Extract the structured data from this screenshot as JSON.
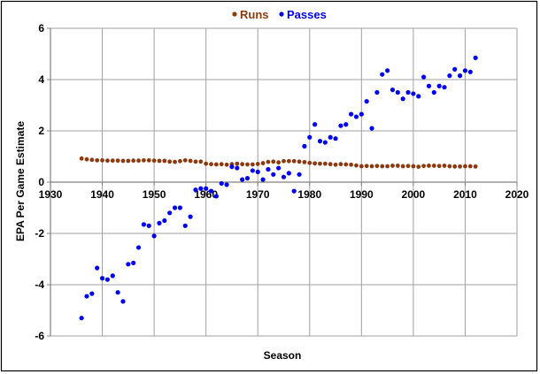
{
  "chart_data": {
    "type": "scatter",
    "xlabel": "Season",
    "ylabel": "EPA Per Game Estimate",
    "xlim": [
      1930,
      2020
    ],
    "ylim": [
      -6,
      6
    ],
    "x_ticks": [
      1930,
      1940,
      1950,
      1960,
      1970,
      1980,
      1990,
      2000,
      2010,
      2020
    ],
    "y_ticks": [
      -6,
      -4,
      -2,
      0,
      2,
      4,
      6
    ],
    "grid": true,
    "legend_position": "top-center",
    "series": [
      {
        "name": "Runs",
        "color": "#8B3A0F",
        "x": [
          1936,
          1937,
          1938,
          1939,
          1940,
          1941,
          1942,
          1943,
          1944,
          1945,
          1946,
          1947,
          1948,
          1949,
          1950,
          1951,
          1952,
          1953,
          1954,
          1955,
          1956,
          1957,
          1958,
          1959,
          1960,
          1961,
          1962,
          1963,
          1964,
          1965,
          1966,
          1967,
          1968,
          1969,
          1970,
          1971,
          1972,
          1973,
          1974,
          1975,
          1976,
          1977,
          1978,
          1979,
          1980,
          1981,
          1982,
          1983,
          1984,
          1985,
          1986,
          1987,
          1988,
          1989,
          1990,
          1991,
          1992,
          1993,
          1994,
          1995,
          1996,
          1997,
          1998,
          1999,
          2000,
          2001,
          2002,
          2003,
          2004,
          2005,
          2006,
          2007,
          2008,
          2009,
          2010,
          2011,
          2012
        ],
        "y": [
          0.92,
          0.89,
          0.87,
          0.85,
          0.85,
          0.84,
          0.84,
          0.84,
          0.83,
          0.83,
          0.84,
          0.84,
          0.85,
          0.85,
          0.84,
          0.83,
          0.83,
          0.8,
          0.79,
          0.82,
          0.85,
          0.83,
          0.8,
          0.8,
          0.72,
          0.7,
          0.69,
          0.7,
          0.68,
          0.7,
          0.72,
          0.7,
          0.69,
          0.69,
          0.71,
          0.74,
          0.79,
          0.8,
          0.77,
          0.82,
          0.82,
          0.82,
          0.8,
          0.78,
          0.75,
          0.73,
          0.72,
          0.72,
          0.7,
          0.68,
          0.7,
          0.69,
          0.68,
          0.65,
          0.62,
          0.63,
          0.62,
          0.63,
          0.62,
          0.62,
          0.64,
          0.64,
          0.62,
          0.63,
          0.62,
          0.6,
          0.63,
          0.64,
          0.64,
          0.63,
          0.64,
          0.62,
          0.61,
          0.61,
          0.62,
          0.62,
          0.61
        ]
      },
      {
        "name": "Passes",
        "color": "#0000EE",
        "x": [
          1936,
          1937,
          1938,
          1939,
          1940,
          1941,
          1942,
          1943,
          1944,
          1945,
          1946,
          1947,
          1948,
          1949,
          1950,
          1951,
          1952,
          1953,
          1954,
          1955,
          1956,
          1957,
          1958,
          1959,
          1960,
          1961,
          1962,
          1963,
          1964,
          1965,
          1966,
          1967,
          1968,
          1969,
          1970,
          1971,
          1972,
          1973,
          1974,
          1975,
          1976,
          1977,
          1978,
          1979,
          1980,
          1981,
          1982,
          1983,
          1984,
          1985,
          1986,
          1987,
          1988,
          1989,
          1990,
          1991,
          1992,
          1993,
          1994,
          1995,
          1996,
          1997,
          1998,
          1999,
          2000,
          2001,
          2002,
          2003,
          2004,
          2005,
          2006,
          2007,
          2008,
          2009,
          2010,
          2011,
          2012
        ],
        "y": [
          -5.3,
          -4.45,
          -4.35,
          -3.35,
          -3.75,
          -3.8,
          -3.65,
          -4.3,
          -4.65,
          -3.2,
          -3.15,
          -2.55,
          -1.65,
          -1.7,
          -2.1,
          -1.6,
          -1.5,
          -1.2,
          -1.0,
          -1.0,
          -1.7,
          -1.35,
          -0.3,
          -0.25,
          -0.25,
          -0.35,
          -0.55,
          -0.05,
          -0.1,
          0.6,
          0.55,
          0.1,
          0.15,
          0.45,
          0.4,
          0.1,
          0.5,
          0.3,
          0.55,
          0.2,
          0.35,
          -0.35,
          0.3,
          1.4,
          1.75,
          2.25,
          1.6,
          1.55,
          1.75,
          1.7,
          2.2,
          2.25,
          2.65,
          2.55,
          2.65,
          3.15,
          2.1,
          3.5,
          4.2,
          4.35,
          3.6,
          3.5,
          3.25,
          3.5,
          3.45,
          3.35,
          4.1,
          3.75,
          3.5,
          3.75,
          3.7,
          4.15,
          4.4,
          4.15,
          4.35,
          4.3,
          4.85
        ]
      }
    ]
  }
}
